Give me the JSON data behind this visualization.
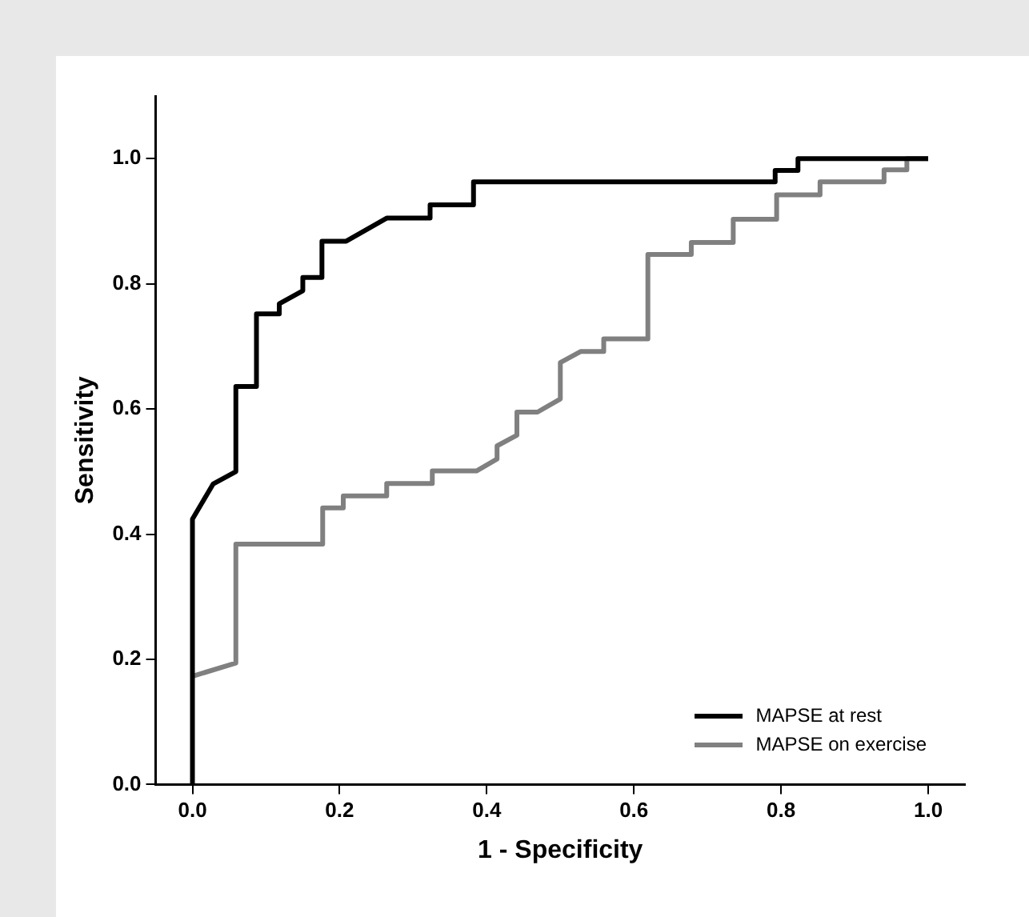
{
  "chart_data": {
    "type": "line",
    "xlabel": "1 - Specificity",
    "ylabel": "Sensitivity",
    "xlim": [
      -0.05,
      1.05
    ],
    "ylim": [
      0,
      1.1
    ],
    "xticks": [
      {
        "value": 0,
        "label": "0.0"
      },
      {
        "value": 0.2,
        "label": "0.2"
      },
      {
        "value": 0.4,
        "label": "0.4"
      },
      {
        "value": 0.6,
        "label": "0.6"
      },
      {
        "value": 0.8,
        "label": "0.8"
      },
      {
        "value": 1,
        "label": "1.0"
      }
    ],
    "yticks": [
      {
        "value": 0,
        "label": "0.0"
      },
      {
        "value": 0.2,
        "label": "0.2"
      },
      {
        "value": 0.4,
        "label": "0.4"
      },
      {
        "value": 0.6,
        "label": "0.6"
      },
      {
        "value": 0.8,
        "label": "0.8"
      },
      {
        "value": 1,
        "label": "1.0"
      }
    ],
    "grid": false,
    "legend": "bottom right",
    "marker": "none",
    "line_style": "solid",
    "series": [
      {
        "name": "MAPSE at rest",
        "color": "#000000",
        "x": [
          0,
          0,
          0.028,
          0.059,
          0.059,
          0.087,
          0.087,
          0.118,
          0.118,
          0.15,
          0.15,
          0.176,
          0.176,
          0.209,
          0.264,
          0.323,
          0.323,
          0.382,
          0.382,
          0.792,
          0.792,
          0.823,
          0.823,
          1
        ],
        "values": [
          0,
          0.424,
          0.48,
          0.5,
          0.636,
          0.636,
          0.752,
          0.752,
          0.768,
          0.789,
          0.81,
          0.81,
          0.868,
          0.868,
          0.905,
          0.905,
          0.926,
          0.926,
          0.963,
          0.963,
          0.981,
          0.981,
          1,
          1
        ]
      },
      {
        "name": "MAPSE on exercise",
        "color": "#808080",
        "x": [
          0,
          0.059,
          0.059,
          0.177,
          0.177,
          0.205,
          0.205,
          0.264,
          0.264,
          0.326,
          0.326,
          0.386,
          0.414,
          0.414,
          0.441,
          0.441,
          0.469,
          0.5,
          0.5,
          0.528,
          0.559,
          0.559,
          0.619,
          0.619,
          0.678,
          0.678,
          0.735,
          0.735,
          0.794,
          0.794,
          0.853,
          0.853,
          0.94,
          0.94,
          0.971,
          0.971,
          1
        ],
        "values": [
          0.173,
          0.194,
          0.384,
          0.384,
          0.442,
          0.442,
          0.461,
          0.461,
          0.481,
          0.481,
          0.501,
          0.501,
          0.52,
          0.541,
          0.558,
          0.595,
          0.595,
          0.616,
          0.674,
          0.692,
          0.692,
          0.712,
          0.712,
          0.847,
          0.847,
          0.866,
          0.866,
          0.903,
          0.903,
          0.942,
          0.942,
          0.963,
          0.963,
          0.982,
          0.982,
          1,
          1
        ]
      }
    ]
  }
}
